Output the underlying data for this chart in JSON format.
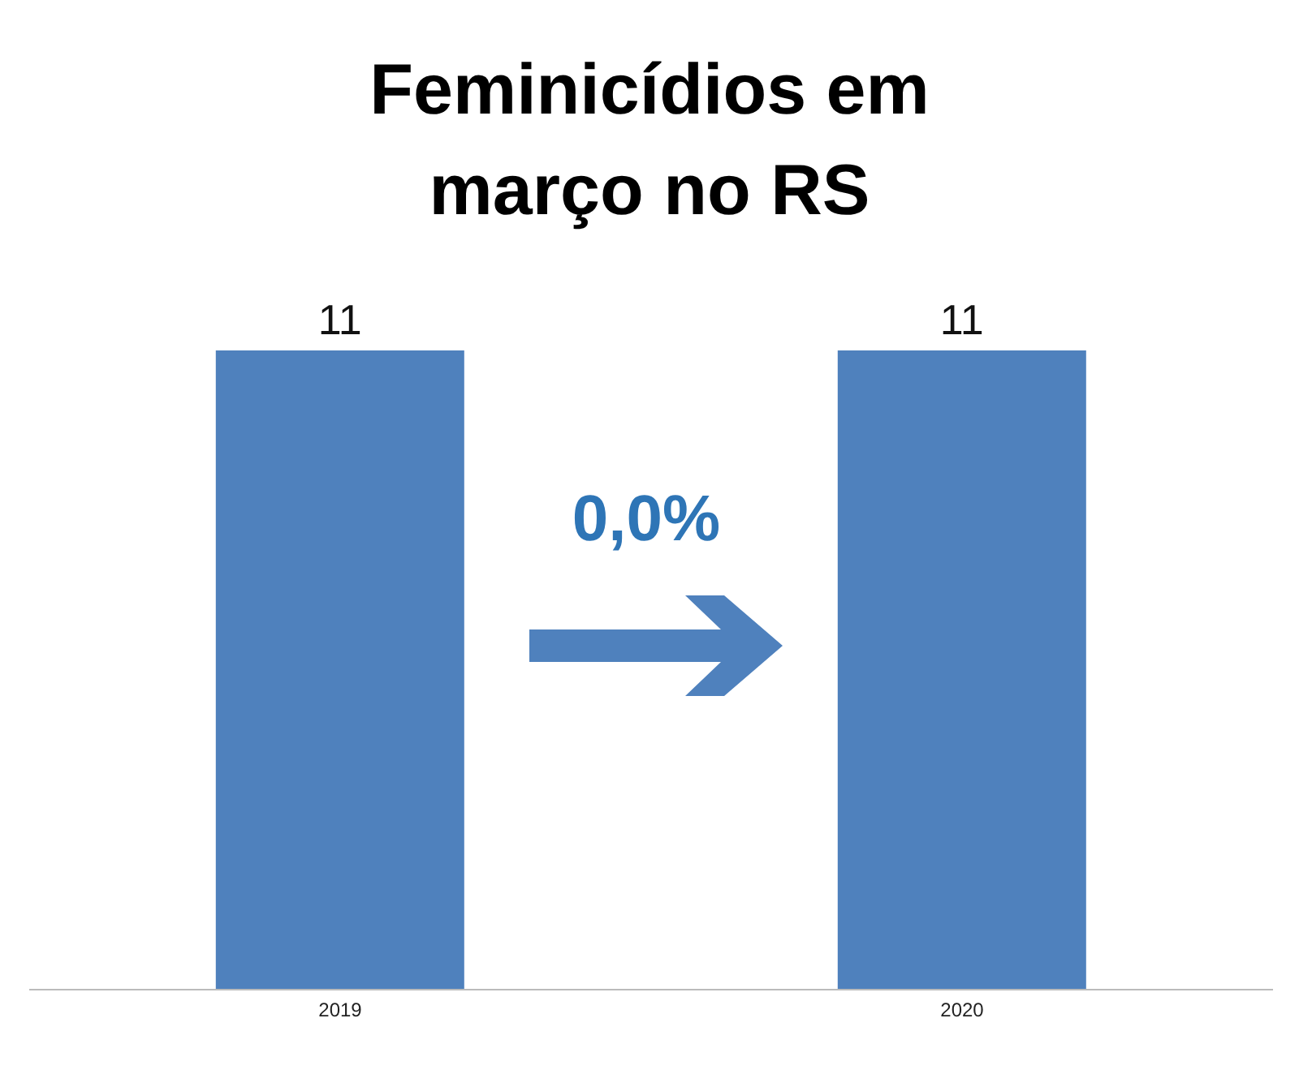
{
  "chart_data": {
    "type": "bar",
    "title": "Feminicídios em março no RS",
    "categories": [
      "2019",
      "2020"
    ],
    "values": [
      11,
      11
    ],
    "color": "#4f81bd",
    "data_labels": true,
    "annotations": [
      "0,0%"
    ]
  }
}
